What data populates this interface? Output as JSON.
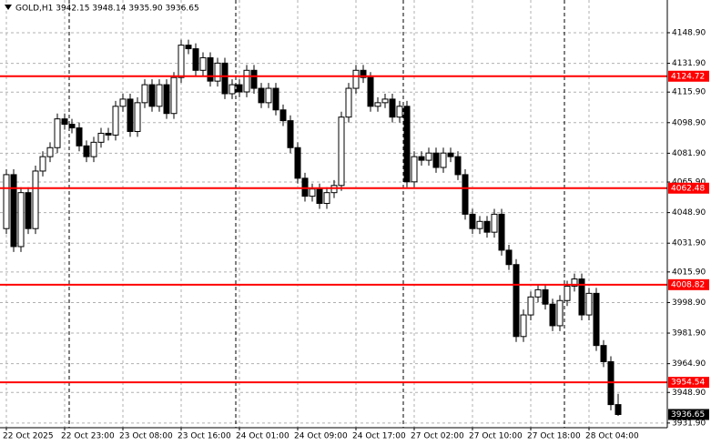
{
  "chart_data": {
    "type": "candlestick",
    "header": "GOLD,H1  3942.15 3948.14 3935.90 3936.65",
    "categories": [
      "22 Oct 2025",
      null,
      null,
      null,
      null,
      null,
      null,
      null,
      "22 Oct 23:00",
      null,
      null,
      null,
      null,
      null,
      null,
      null,
      "23 Oct 08:00",
      null,
      null,
      null,
      null,
      null,
      null,
      null,
      "23 Oct 16:00",
      null,
      null,
      null,
      null,
      null,
      null,
      null,
      "24 Oct 01:00",
      null,
      null,
      null,
      null,
      null,
      null,
      null,
      "24 Oct 09:00",
      null,
      null,
      null,
      null,
      null,
      null,
      null,
      "24 Oct 17:00",
      null,
      null,
      null,
      null,
      null,
      null,
      null,
      "27 Oct 02:00",
      null,
      null,
      null,
      null,
      null,
      null,
      null,
      "27 Oct 10:00",
      null,
      null,
      null,
      null,
      null,
      null,
      null,
      "27 Oct 18:00",
      null,
      null,
      null,
      null,
      null,
      null,
      null,
      "28 Oct 04:00",
      null,
      null,
      null,
      null
    ],
    "open": [
      4040,
      4070,
      4030,
      4060,
      4040,
      4072,
      4080,
      4085,
      4101,
      4098,
      4096,
      4086,
      4080,
      4088,
      4093,
      4092,
      4108,
      4112,
      4094,
      4110,
      4120,
      4108,
      4120,
      4104,
      4124,
      4142,
      4140,
      4128,
      4135,
      4122,
      4132,
      4115,
      4120,
      4116,
      4128,
      4118,
      4110,
      4118,
      4106,
      4100,
      4085,
      4068,
      4058,
      4062,
      4054,
      4060,
      4064,
      4102,
      4118,
      4128,
      4124,
      4108,
      4110,
      4112,
      4102,
      4108,
      4066,
      4080,
      4078,
      4082,
      4074,
      4082,
      4080,
      4070,
      4048,
      4040,
      4044,
      4038,
      4048,
      4028,
      4020,
      3980,
      3992,
      4002,
      4006,
      3998,
      3986,
      4000,
      4008,
      4012,
      3992,
      4004,
      3975,
      3966,
      3942.15
    ],
    "high": [
      4073,
      4073,
      4063,
      4063,
      4075,
      4083,
      4088,
      4104,
      4104,
      4101,
      4099,
      4089,
      4091,
      4096,
      4096,
      4111,
      4115,
      4115,
      4113,
      4123,
      4123,
      4123,
      4123,
      4127,
      4145,
      4145,
      4143,
      4138,
      4138,
      4135,
      4135,
      4123,
      4123,
      4131,
      4131,
      4121,
      4121,
      4121,
      4109,
      4103,
      4088,
      4071,
      4065,
      4065,
      4063,
      4067,
      4105,
      4121,
      4131,
      4131,
      4127,
      4113,
      4115,
      4115,
      4111,
      4111,
      4083,
      4083,
      4085,
      4085,
      4085,
      4085,
      4083,
      4073,
      4051,
      4047,
      4047,
      4051,
      4051,
      4031,
      4023,
      3995,
      4005,
      4009,
      4009,
      4001,
      4003,
      4011,
      4015,
      4015,
      4007,
      4007,
      3978,
      3969,
      3948.14
    ],
    "low": [
      4037,
      4027,
      4027,
      4037,
      4037,
      4069,
      4077,
      4082,
      4095,
      4093,
      4083,
      4077,
      4077,
      4085,
      4089,
      4089,
      4105,
      4091,
      4091,
      4107,
      4105,
      4105,
      4101,
      4101,
      4121,
      4137,
      4125,
      4125,
      4119,
      4119,
      4112,
      4112,
      4113,
      4113,
      4115,
      4107,
      4107,
      4103,
      4097,
      4082,
      4065,
      4055,
      4055,
      4051,
      4051,
      4057,
      4061,
      4099,
      4115,
      4121,
      4105,
      4105,
      4107,
      4099,
      4099,
      4063,
      4063,
      4075,
      4075,
      4071,
      4071,
      4077,
      4067,
      4045,
      4037,
      4037,
      4035,
      4035,
      4025,
      4017,
      3977,
      3977,
      3989,
      3999,
      3995,
      3983,
      3983,
      3997,
      4005,
      3989,
      3989,
      3972,
      3963,
      3939,
      3935.9
    ],
    "close": [
      4070,
      4030,
      4060,
      4040,
      4072,
      4080,
      4085,
      4101,
      4098,
      4096,
      4086,
      4080,
      4088,
      4093,
      4092,
      4108,
      4112,
      4094,
      4110,
      4120,
      4108,
      4120,
      4104,
      4124,
      4142,
      4140,
      4128,
      4135,
      4122,
      4132,
      4115,
      4120,
      4116,
      4128,
      4118,
      4110,
      4118,
      4106,
      4100,
      4085,
      4068,
      4058,
      4062,
      4054,
      4060,
      4064,
      4102,
      4118,
      4128,
      4124,
      4108,
      4110,
      4112,
      4102,
      4108,
      4066,
      4080,
      4078,
      4082,
      4074,
      4082,
      4080,
      4070,
      4048,
      4040,
      4044,
      4038,
      4048,
      4028,
      4020,
      3980,
      3992,
      4002,
      4006,
      3998,
      3986,
      4000,
      4008,
      4012,
      3992,
      4004,
      3975,
      3966,
      3942.15,
      3936.65
    ],
    "ylim": [
      3929.3,
      4167.1
    ],
    "yticks": [
      {
        "value": 4148.9,
        "label": "4148.90"
      },
      {
        "value": 4131.9,
        "label": "4131.90"
      },
      {
        "value": 4115.9,
        "label": "4115.90"
      },
      {
        "value": 4098.9,
        "label": "4098.90"
      },
      {
        "value": 4081.9,
        "label": "4081.90"
      },
      {
        "value": 4065.9,
        "label": "4065.90"
      },
      {
        "value": 4048.9,
        "label": "4048.90"
      },
      {
        "value": 4031.9,
        "label": "4031.90"
      },
      {
        "value": 4015.9,
        "label": "4015.90"
      },
      {
        "value": 3998.9,
        "label": "3998.90"
      },
      {
        "value": 3981.9,
        "label": "3981.90"
      },
      {
        "value": 3964.9,
        "label": "3964.90"
      },
      {
        "value": 3948.9,
        "label": "3948.90"
      },
      {
        "value": 3931.9,
        "label": "3931.90"
      }
    ],
    "levels": [
      4124.72,
      4062.48,
      4008.82,
      3954.54
    ],
    "level_color": "#ff0000",
    "last_price": 3936.65,
    "grid": true
  }
}
